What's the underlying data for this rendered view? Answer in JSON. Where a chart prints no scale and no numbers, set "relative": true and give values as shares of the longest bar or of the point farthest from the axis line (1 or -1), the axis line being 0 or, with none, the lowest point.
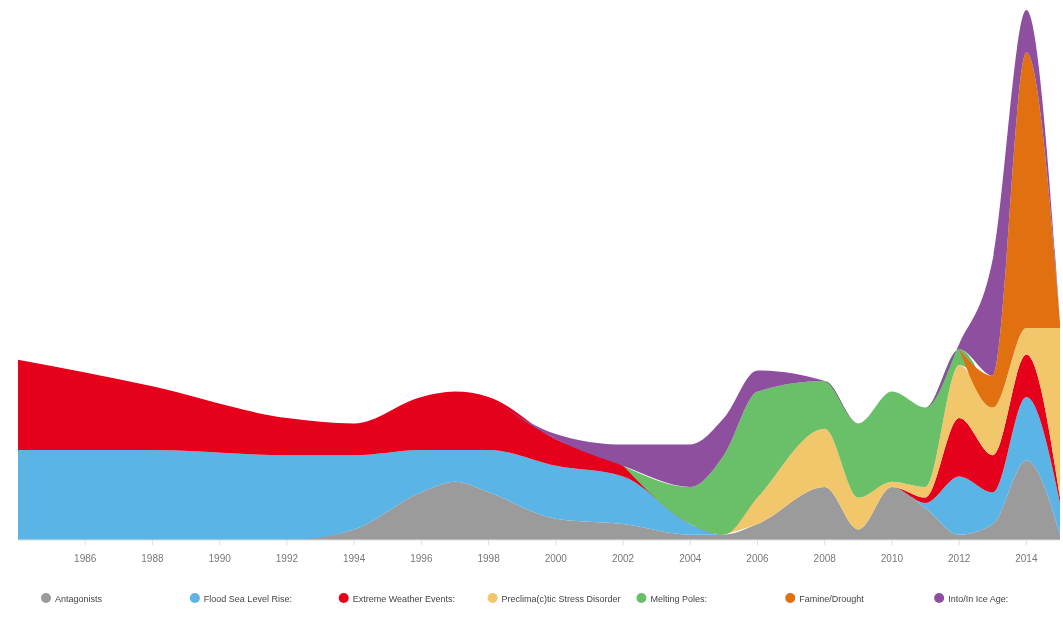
{
  "chart_data": {
    "type": "area",
    "stacked": true,
    "relative": true,
    "legend": "bottom",
    "grid": false,
    "x": [
      1984,
      1988,
      1992,
      1994,
      1996,
      1997,
      1998,
      2000,
      2002,
      2004,
      2005,
      2006,
      2008,
      2009,
      2010,
      2011,
      2012,
      2013,
      2014,
      2015
    ],
    "xlim": [
      1984,
      2015
    ],
    "xticks": [
      1986,
      1988,
      1990,
      1992,
      1994,
      1996,
      1998,
      2000,
      2002,
      2004,
      2006,
      2008,
      2010,
      2012,
      2014
    ],
    "series": [
      {
        "name": "Antagonists",
        "color": "#9b9b9b",
        "values": [
          null,
          null,
          0,
          0.02,
          0.09,
          0.11,
          0.09,
          0.04,
          0.03,
          0.01,
          0.01,
          0.03,
          0.1,
          0.02,
          0.1,
          0.06,
          0.01,
          0.03,
          0.15,
          0.01
        ]
      },
      {
        "name": "Flood Sea Level Rise:",
        "color": "#5ab4e5",
        "values": [
          0.17,
          0.17,
          0.16,
          0.14,
          0.08,
          0.06,
          0.08,
          0.1,
          0.09,
          0.02,
          0,
          0,
          0,
          0,
          0,
          0.01,
          0.11,
          0.06,
          0.12,
          0.06
        ]
      },
      {
        "name": "Extreme Weather Events:",
        "color": "#e5001c",
        "values": [
          0.17,
          0.12,
          0.07,
          0.06,
          0.1,
          0.11,
          0.1,
          0.05,
          0.02,
          0,
          0,
          0,
          0,
          0,
          0,
          0.01,
          0.11,
          0.07,
          0.08,
          0.01
        ]
      },
      {
        "name": "Preclima(c)tic Stress Disorder",
        "color": "#f2c76b",
        "values": [
          null,
          null,
          null,
          null,
          null,
          null,
          null,
          null,
          null,
          null,
          0,
          0.05,
          0.11,
          0.06,
          0.01,
          0.02,
          0.1,
          0.09,
          0.05,
          0.32
        ]
      },
      {
        "name": "Melting Poles:",
        "color": "#6abf69",
        "values": [
          null,
          null,
          null,
          null,
          null,
          null,
          null,
          null,
          0,
          0.07,
          0.15,
          0.2,
          0.09,
          0.14,
          0.17,
          0.15,
          0.03,
          0,
          null,
          null
        ]
      },
      {
        "name": "Famine/Drought",
        "color": "#e07010",
        "values": [
          null,
          null,
          null,
          null,
          null,
          null,
          null,
          null,
          null,
          null,
          null,
          null,
          null,
          null,
          null,
          null,
          0,
          0.06,
          0.52,
          0.01
        ]
      },
      {
        "name": "Into/In Ice Age:",
        "color": "#8e4f9e",
        "values": [
          null,
          null,
          null,
          null,
          null,
          null,
          0,
          0.01,
          0.04,
          0.08,
          0.07,
          0.04,
          0,
          0,
          0,
          0,
          0.01,
          0.22,
          0.08,
          0
        ]
      }
    ]
  }
}
